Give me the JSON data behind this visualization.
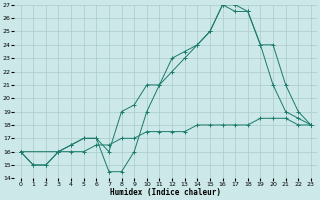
{
  "xlabel": "Humidex (Indice chaleur)",
  "background_color": "#cce8e8",
  "grid_color": "#aacccc",
  "line_color": "#1a7a6a",
  "xmin": 0,
  "xmax": 23,
  "ymin": 14,
  "ymax": 27,
  "line1_x": [
    0,
    1,
    2,
    3,
    4,
    5,
    6,
    7,
    8,
    9,
    10,
    11,
    12,
    13,
    14,
    15,
    16,
    17,
    18,
    19,
    20,
    21,
    22,
    23
  ],
  "line1_y": [
    16,
    15,
    15,
    16,
    16,
    16,
    16.5,
    16.5,
    17,
    17,
    17.5,
    17.5,
    17.5,
    17.5,
    18,
    18,
    18,
    18,
    18,
    18.5,
    18.5,
    18.5,
    18,
    18
  ],
  "line2_x": [
    0,
    1,
    2,
    3,
    4,
    5,
    6,
    7,
    8,
    9,
    10,
    11,
    12,
    13,
    14,
    15,
    16,
    17,
    18,
    19,
    20,
    21,
    22,
    23
  ],
  "line2_y": [
    16,
    15,
    15,
    16,
    16.5,
    17,
    17,
    14.5,
    14.5,
    16,
    19,
    21,
    23,
    23.5,
    24,
    25,
    27,
    26.5,
    26.5,
    24,
    21,
    19,
    18.5,
    18
  ],
  "line3_x": [
    0,
    3,
    4,
    5,
    6,
    7,
    8,
    9,
    10,
    11,
    12,
    13,
    14,
    15,
    16,
    17,
    18,
    19,
    20,
    21,
    22,
    23
  ],
  "line3_y": [
    16,
    16,
    16.5,
    17,
    17,
    16,
    19,
    19.5,
    21,
    21,
    22,
    23,
    24,
    25,
    27,
    27,
    26.5,
    24,
    24,
    21,
    19,
    18
  ]
}
